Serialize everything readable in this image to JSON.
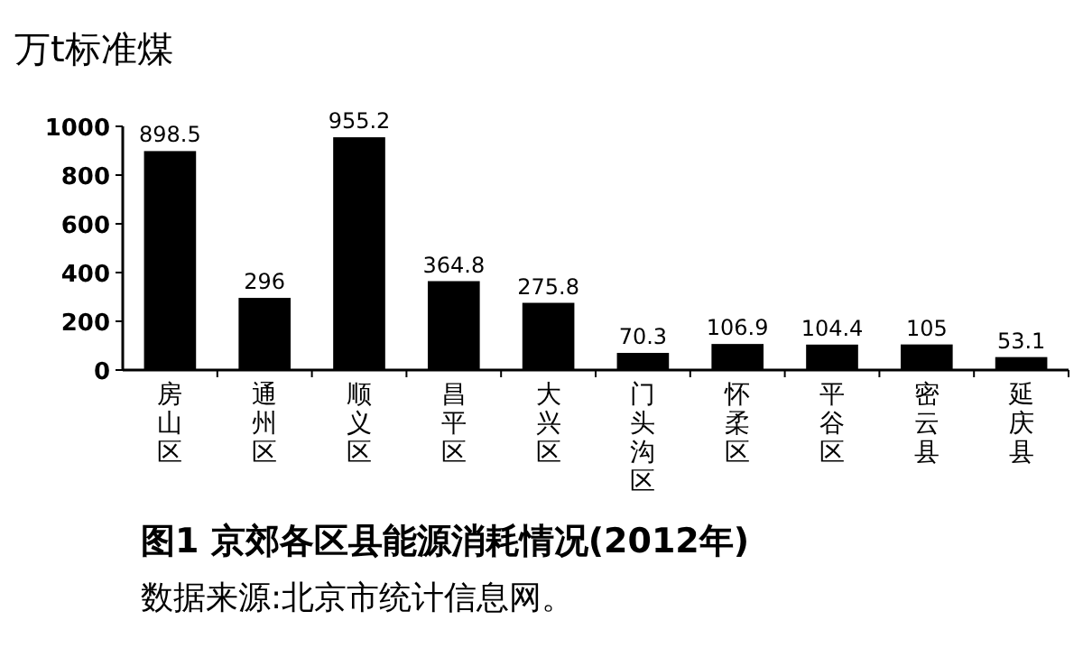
{
  "chart_data": {
    "type": "bar",
    "title": "图1  京郊各区县能源消耗情况(2012年)",
    "ylabel": "万t标准煤",
    "categories": [
      "房山区",
      "通州区",
      "顺义区",
      "昌平区",
      "大兴区",
      "门头沟区",
      "怀柔区",
      "平谷区",
      "密云县",
      "延庆县"
    ],
    "values": [
      898.5,
      296,
      955.2,
      364.8,
      275.8,
      70.3,
      106.9,
      104.4,
      105,
      53.1
    ],
    "color": "#000000",
    "ylim": [
      0,
      1000
    ],
    "yticks": [
      0,
      200,
      400,
      600,
      800,
      1000
    ],
    "data_labels": true,
    "annotations": [
      "数据来源:北京市统计信息网。"
    ]
  }
}
